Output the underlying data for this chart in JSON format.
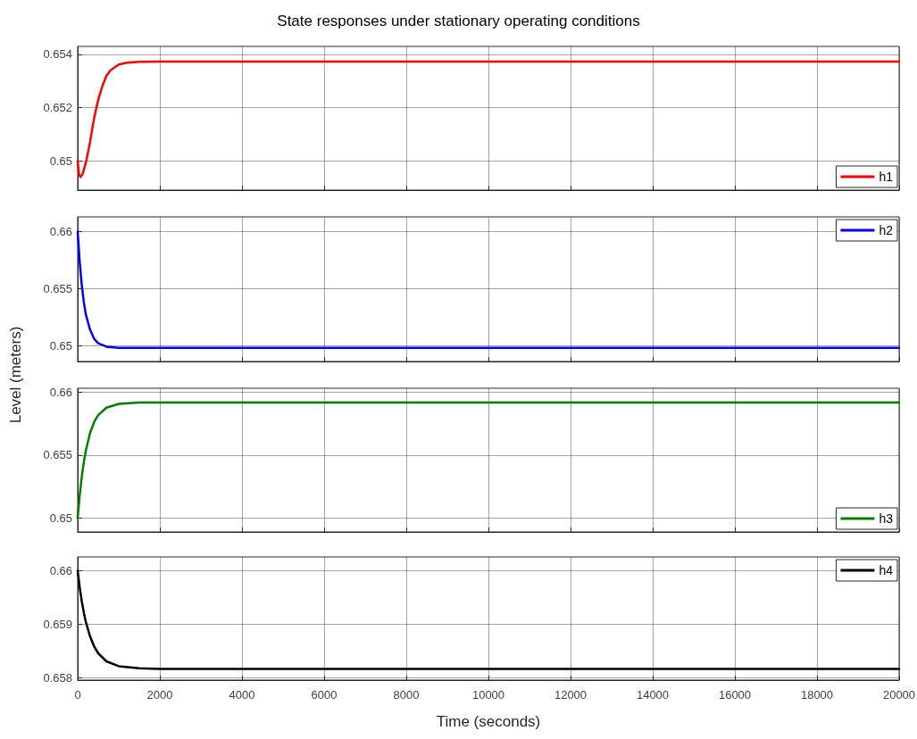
{
  "chart_data": [
    {
      "type": "line",
      "title": "State responses under stationary operating conditions",
      "grid": true,
      "legend": "bottom right",
      "tick_labels": "y",
      "marker": "none",
      "xlim": [
        0,
        20000
      ],
      "xticks": [
        0,
        2000,
        4000,
        6000,
        8000,
        10000,
        12000,
        14000,
        16000,
        18000,
        20000
      ],
      "ylim": [
        0.6489,
        0.6543
      ],
      "yticks": [
        0.65,
        0.652,
        0.654
      ],
      "series": [
        {
          "name": "h1",
          "color": "#ff0000",
          "x": [
            0,
            30,
            70,
            120,
            210,
            300,
            400,
            500,
            600,
            700,
            800,
            1000,
            1200,
            1500,
            2000,
            20000
          ],
          "values": [
            0.65,
            0.6495,
            0.64939,
            0.6495,
            0.65,
            0.6507,
            0.6516,
            0.6523,
            0.6528,
            0.6532,
            0.6534,
            0.65362,
            0.65369,
            0.65372,
            0.65373,
            0.65373
          ]
        }
      ]
    },
    {
      "type": "line",
      "ylabel": "Level (meters)",
      "grid": true,
      "legend": "top right",
      "tick_labels": "y",
      "marker": "none",
      "xlim": [
        0,
        20000
      ],
      "xticks": [
        0,
        2000,
        4000,
        6000,
        8000,
        10000,
        12000,
        14000,
        16000,
        18000,
        20000
      ],
      "ylim": [
        0.6486,
        0.6613
      ],
      "yticks": [
        0.65,
        0.655,
        0.66
      ],
      "series": [
        {
          "name": "h2",
          "color": "#0000ff",
          "x": [
            0,
            50,
            100,
            150,
            200,
            300,
            400,
            500,
            700,
            1000,
            1500,
            20000
          ],
          "values": [
            0.66,
            0.6573,
            0.6553,
            0.6538,
            0.6527,
            0.6514,
            0.6506,
            0.6502,
            0.6499,
            0.6498,
            0.6498,
            0.6498
          ]
        }
      ]
    },
    {
      "type": "line",
      "grid": true,
      "legend": "bottom right",
      "tick_labels": "y",
      "marker": "none",
      "xlim": [
        0,
        20000
      ],
      "xticks": [
        0,
        2000,
        4000,
        6000,
        8000,
        10000,
        12000,
        14000,
        16000,
        18000,
        20000
      ],
      "ylim": [
        0.6489,
        0.6603
      ],
      "yticks": [
        0.65,
        0.655,
        0.66
      ],
      "series": [
        {
          "name": "h3",
          "color": "#008000",
          "x": [
            0,
            50,
            100,
            150,
            200,
            300,
            400,
            500,
            700,
            1000,
            1500,
            2000,
            20000
          ],
          "values": [
            0.65,
            0.65182,
            0.65328,
            0.65445,
            0.65538,
            0.65674,
            0.65761,
            0.65817,
            0.65876,
            0.65906,
            0.65916,
            0.65917,
            0.65917
          ]
        }
      ]
    },
    {
      "type": "line",
      "xlabel": "Time (seconds)",
      "grid": true,
      "legend": "top right",
      "marker": "none",
      "xlim": [
        0,
        20000
      ],
      "xticks": [
        0,
        2000,
        4000,
        6000,
        8000,
        10000,
        12000,
        14000,
        16000,
        18000,
        20000
      ],
      "ylim": [
        0.65796,
        0.66026
      ],
      "yticks": [
        0.658,
        0.659,
        0.66
      ],
      "series": [
        {
          "name": "h4",
          "color": "#000000",
          "x": [
            0,
            50,
            100,
            150,
            200,
            300,
            400,
            500,
            700,
            1000,
            1500,
            2000,
            20000
          ],
          "values": [
            0.66,
            0.65969,
            0.65943,
            0.65922,
            0.65904,
            0.65878,
            0.65859,
            0.65846,
            0.65831,
            0.65822,
            0.65818,
            0.65817,
            0.65817
          ]
        }
      ]
    }
  ]
}
